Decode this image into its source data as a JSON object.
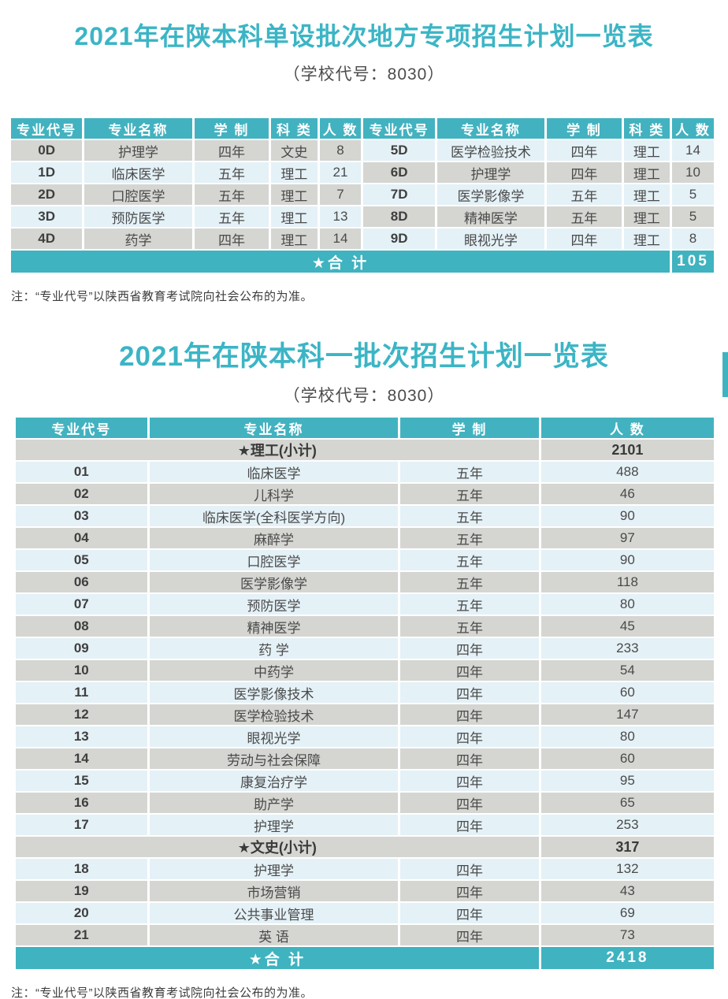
{
  "colors": {
    "accent_teal": "#3fb3c0",
    "header_teal": "#42b2c0",
    "title_teal": "#3bb5c5",
    "row_gray": "#d5d5d2",
    "row_blue": "#e4f1f7"
  },
  "section1": {
    "title": "2021年在陕本科单设批次地方专项招生计划一览表",
    "subtitle": "（学校代号：8030）",
    "note": "注：“专业代号”以陕西省教育考试院向社会公布的为准。",
    "table": {
      "headers": [
        "专业代号",
        "专业名称",
        "学 制",
        "科 类",
        "人 数"
      ],
      "left_rows": [
        {
          "code": "0D",
          "name": "护理学",
          "years": "四年",
          "category": "文史",
          "count": "8"
        },
        {
          "code": "1D",
          "name": "临床医学",
          "years": "五年",
          "category": "理工",
          "count": "21"
        },
        {
          "code": "2D",
          "name": "口腔医学",
          "years": "五年",
          "category": "理工",
          "count": "7"
        },
        {
          "code": "3D",
          "name": "预防医学",
          "years": "五年",
          "category": "理工",
          "count": "13"
        },
        {
          "code": "4D",
          "name": "药学",
          "years": "四年",
          "category": "理工",
          "count": "14"
        }
      ],
      "right_rows": [
        {
          "code": "5D",
          "name": "医学检验技术",
          "years": "四年",
          "category": "理工",
          "count": "14"
        },
        {
          "code": "6D",
          "name": "护理学",
          "years": "四年",
          "category": "理工",
          "count": "10"
        },
        {
          "code": "7D",
          "name": "医学影像学",
          "years": "五年",
          "category": "理工",
          "count": "5"
        },
        {
          "code": "8D",
          "name": "精神医学",
          "years": "五年",
          "category": "理工",
          "count": "5"
        },
        {
          "code": "9D",
          "name": "眼视光学",
          "years": "四年",
          "category": "理工",
          "count": "8"
        }
      ],
      "total_label": "★合 计",
      "total_value": "105"
    }
  },
  "section2": {
    "title": "2021年在陕本科一批次招生计划一览表",
    "subtitle": "（学校代号：8030）",
    "note": "注：“专业代号”以陕西省教育考试院向社会公布的为准。",
    "table": {
      "headers": [
        "专业代号",
        "专业名称",
        "学 制",
        "人 数"
      ],
      "rows": [
        {
          "type": "subtotal",
          "label": "★理工(小计)",
          "count": "2101"
        },
        {
          "type": "data",
          "code": "01",
          "name": "临床医学",
          "years": "五年",
          "count": "488"
        },
        {
          "type": "data",
          "code": "02",
          "name": "儿科学",
          "years": "五年",
          "count": "46"
        },
        {
          "type": "data",
          "code": "03",
          "name": "临床医学(全科医学方向)",
          "years": "五年",
          "count": "90"
        },
        {
          "type": "data",
          "code": "04",
          "name": "麻醉学",
          "years": "五年",
          "count": "97"
        },
        {
          "type": "data",
          "code": "05",
          "name": "口腔医学",
          "years": "五年",
          "count": "90"
        },
        {
          "type": "data",
          "code": "06",
          "name": "医学影像学",
          "years": "五年",
          "count": "118"
        },
        {
          "type": "data",
          "code": "07",
          "name": "预防医学",
          "years": "五年",
          "count": "80"
        },
        {
          "type": "data",
          "code": "08",
          "name": "精神医学",
          "years": "五年",
          "count": "45"
        },
        {
          "type": "data",
          "code": "09",
          "name": "药 学",
          "years": "四年",
          "count": "233"
        },
        {
          "type": "data",
          "code": "10",
          "name": "中药学",
          "years": "四年",
          "count": "54"
        },
        {
          "type": "data",
          "code": "11",
          "name": "医学影像技术",
          "years": "四年",
          "count": "60"
        },
        {
          "type": "data",
          "code": "12",
          "name": "医学检验技术",
          "years": "四年",
          "count": "147"
        },
        {
          "type": "data",
          "code": "13",
          "name": "眼视光学",
          "years": "四年",
          "count": "80"
        },
        {
          "type": "data",
          "code": "14",
          "name": "劳动与社会保障",
          "years": "四年",
          "count": "60"
        },
        {
          "type": "data",
          "code": "15",
          "name": "康复治疗学",
          "years": "四年",
          "count": "95"
        },
        {
          "type": "data",
          "code": "16",
          "name": "助产学",
          "years": "四年",
          "count": "65"
        },
        {
          "type": "data",
          "code": "17",
          "name": "护理学",
          "years": "四年",
          "count": "253"
        },
        {
          "type": "subtotal",
          "label": "★文史(小计)",
          "count": "317"
        },
        {
          "type": "data",
          "code": "18",
          "name": "护理学",
          "years": "四年",
          "count": "132"
        },
        {
          "type": "data",
          "code": "19",
          "name": "市场营销",
          "years": "四年",
          "count": "43"
        },
        {
          "type": "data",
          "code": "20",
          "name": "公共事业管理",
          "years": "四年",
          "count": "69"
        },
        {
          "type": "data",
          "code": "21",
          "name": "英 语",
          "years": "四年",
          "count": "73"
        }
      ],
      "total_label": "★合 计",
      "total_value": "2418"
    }
  }
}
